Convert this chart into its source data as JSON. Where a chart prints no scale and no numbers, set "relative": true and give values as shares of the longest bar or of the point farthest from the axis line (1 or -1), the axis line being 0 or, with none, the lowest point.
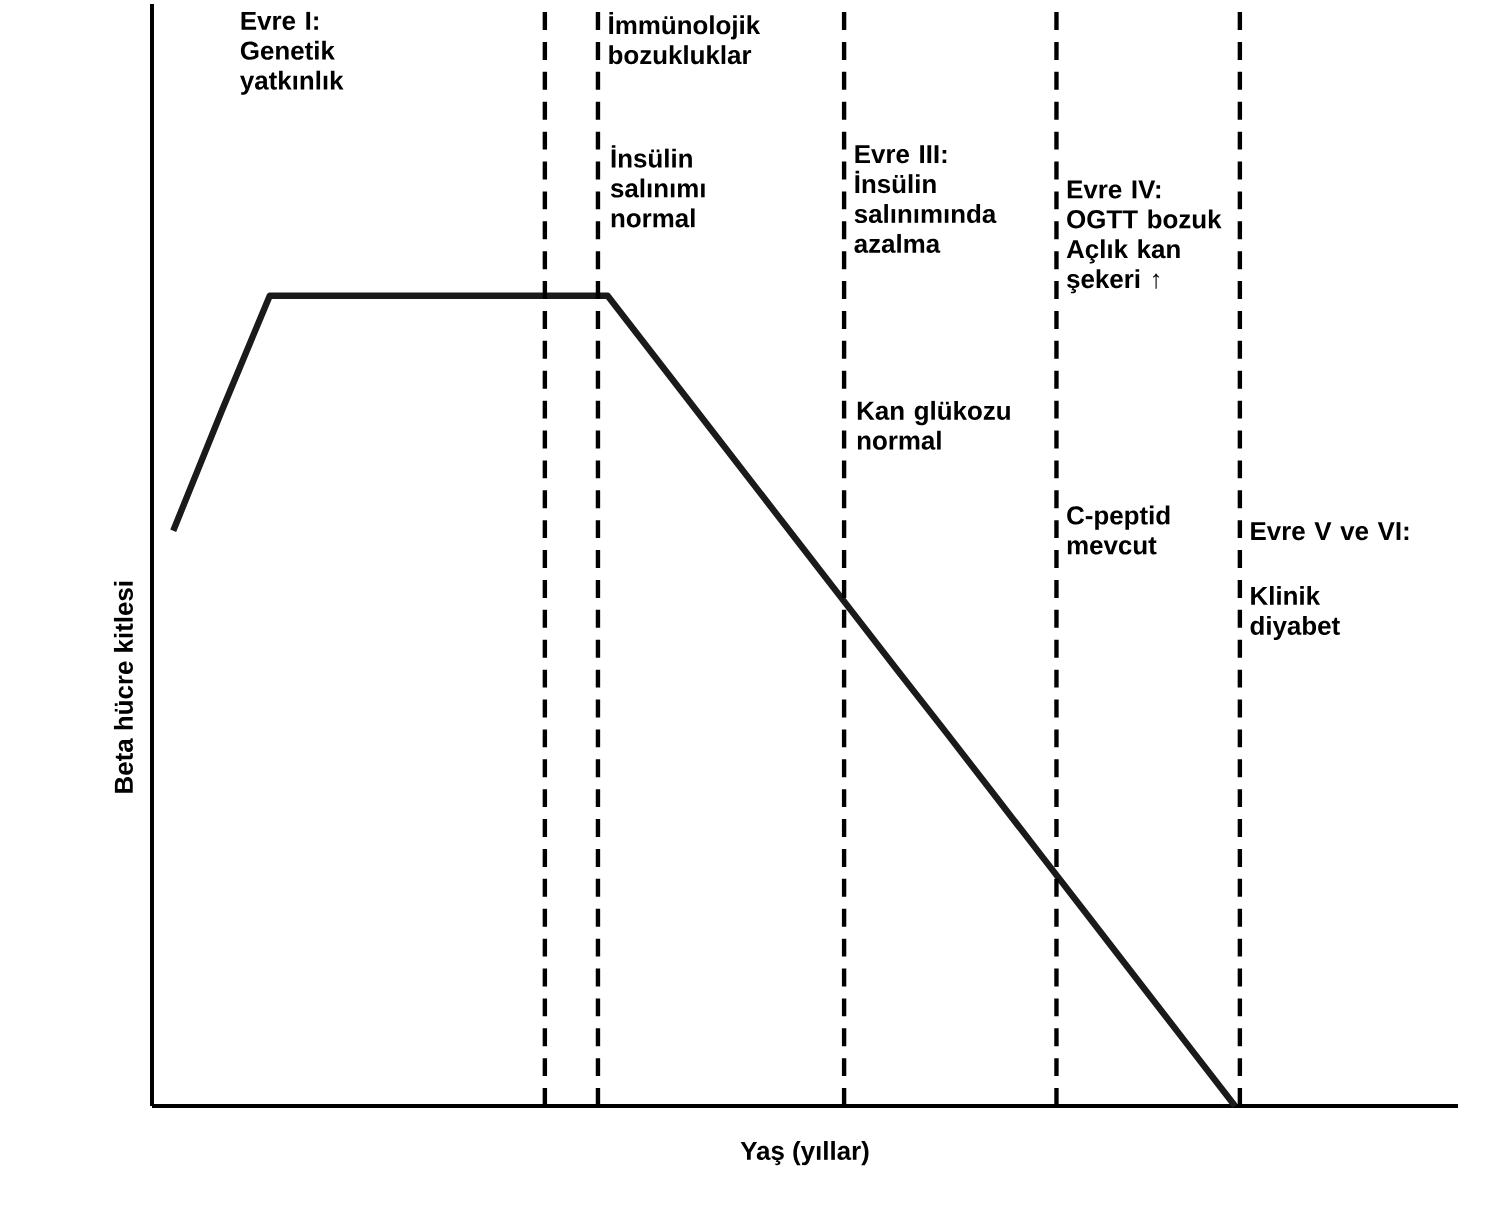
{
  "chart_data": {
    "type": "line",
    "relative": true,
    "xlabel": "Yaş (yıllar)",
    "ylabel": "Beta hücre kitlesi",
    "categories": [
      null,
      null,
      null,
      null,
      null,
      null,
      null,
      null,
      null,
      null,
      null,
      null,
      null,
      null,
      null,
      null,
      null,
      null,
      null,
      null,
      null,
      null,
      null
    ],
    "series": [
      {
        "color": "#1a1a1a",
        "values": [
          0.71,
          0.857,
          1,
          1,
          1,
          1,
          1,
          1,
          1,
          1,
          0.923,
          0.846,
          0.769,
          0.692,
          0.615,
          0.538,
          0.462,
          0.385,
          0.308,
          0.231,
          0.154,
          0.077,
          0
        ]
      }
    ],
    "line_style": "solid",
    "annotations": [
      "Evre I: Genetik yatkınlık",
      "İmmünolojik bozukluklar",
      "İnsülin salınımı normal",
      "Evre III: İnsülin salınımında azalma",
      "Kan glükozu normal",
      "Evre IV: OGTT bozuk Açlık kan şekeri ↑",
      "C-peptid mevcut",
      "Evre V ve VI:",
      "Klinik diyabet"
    ]
  }
}
